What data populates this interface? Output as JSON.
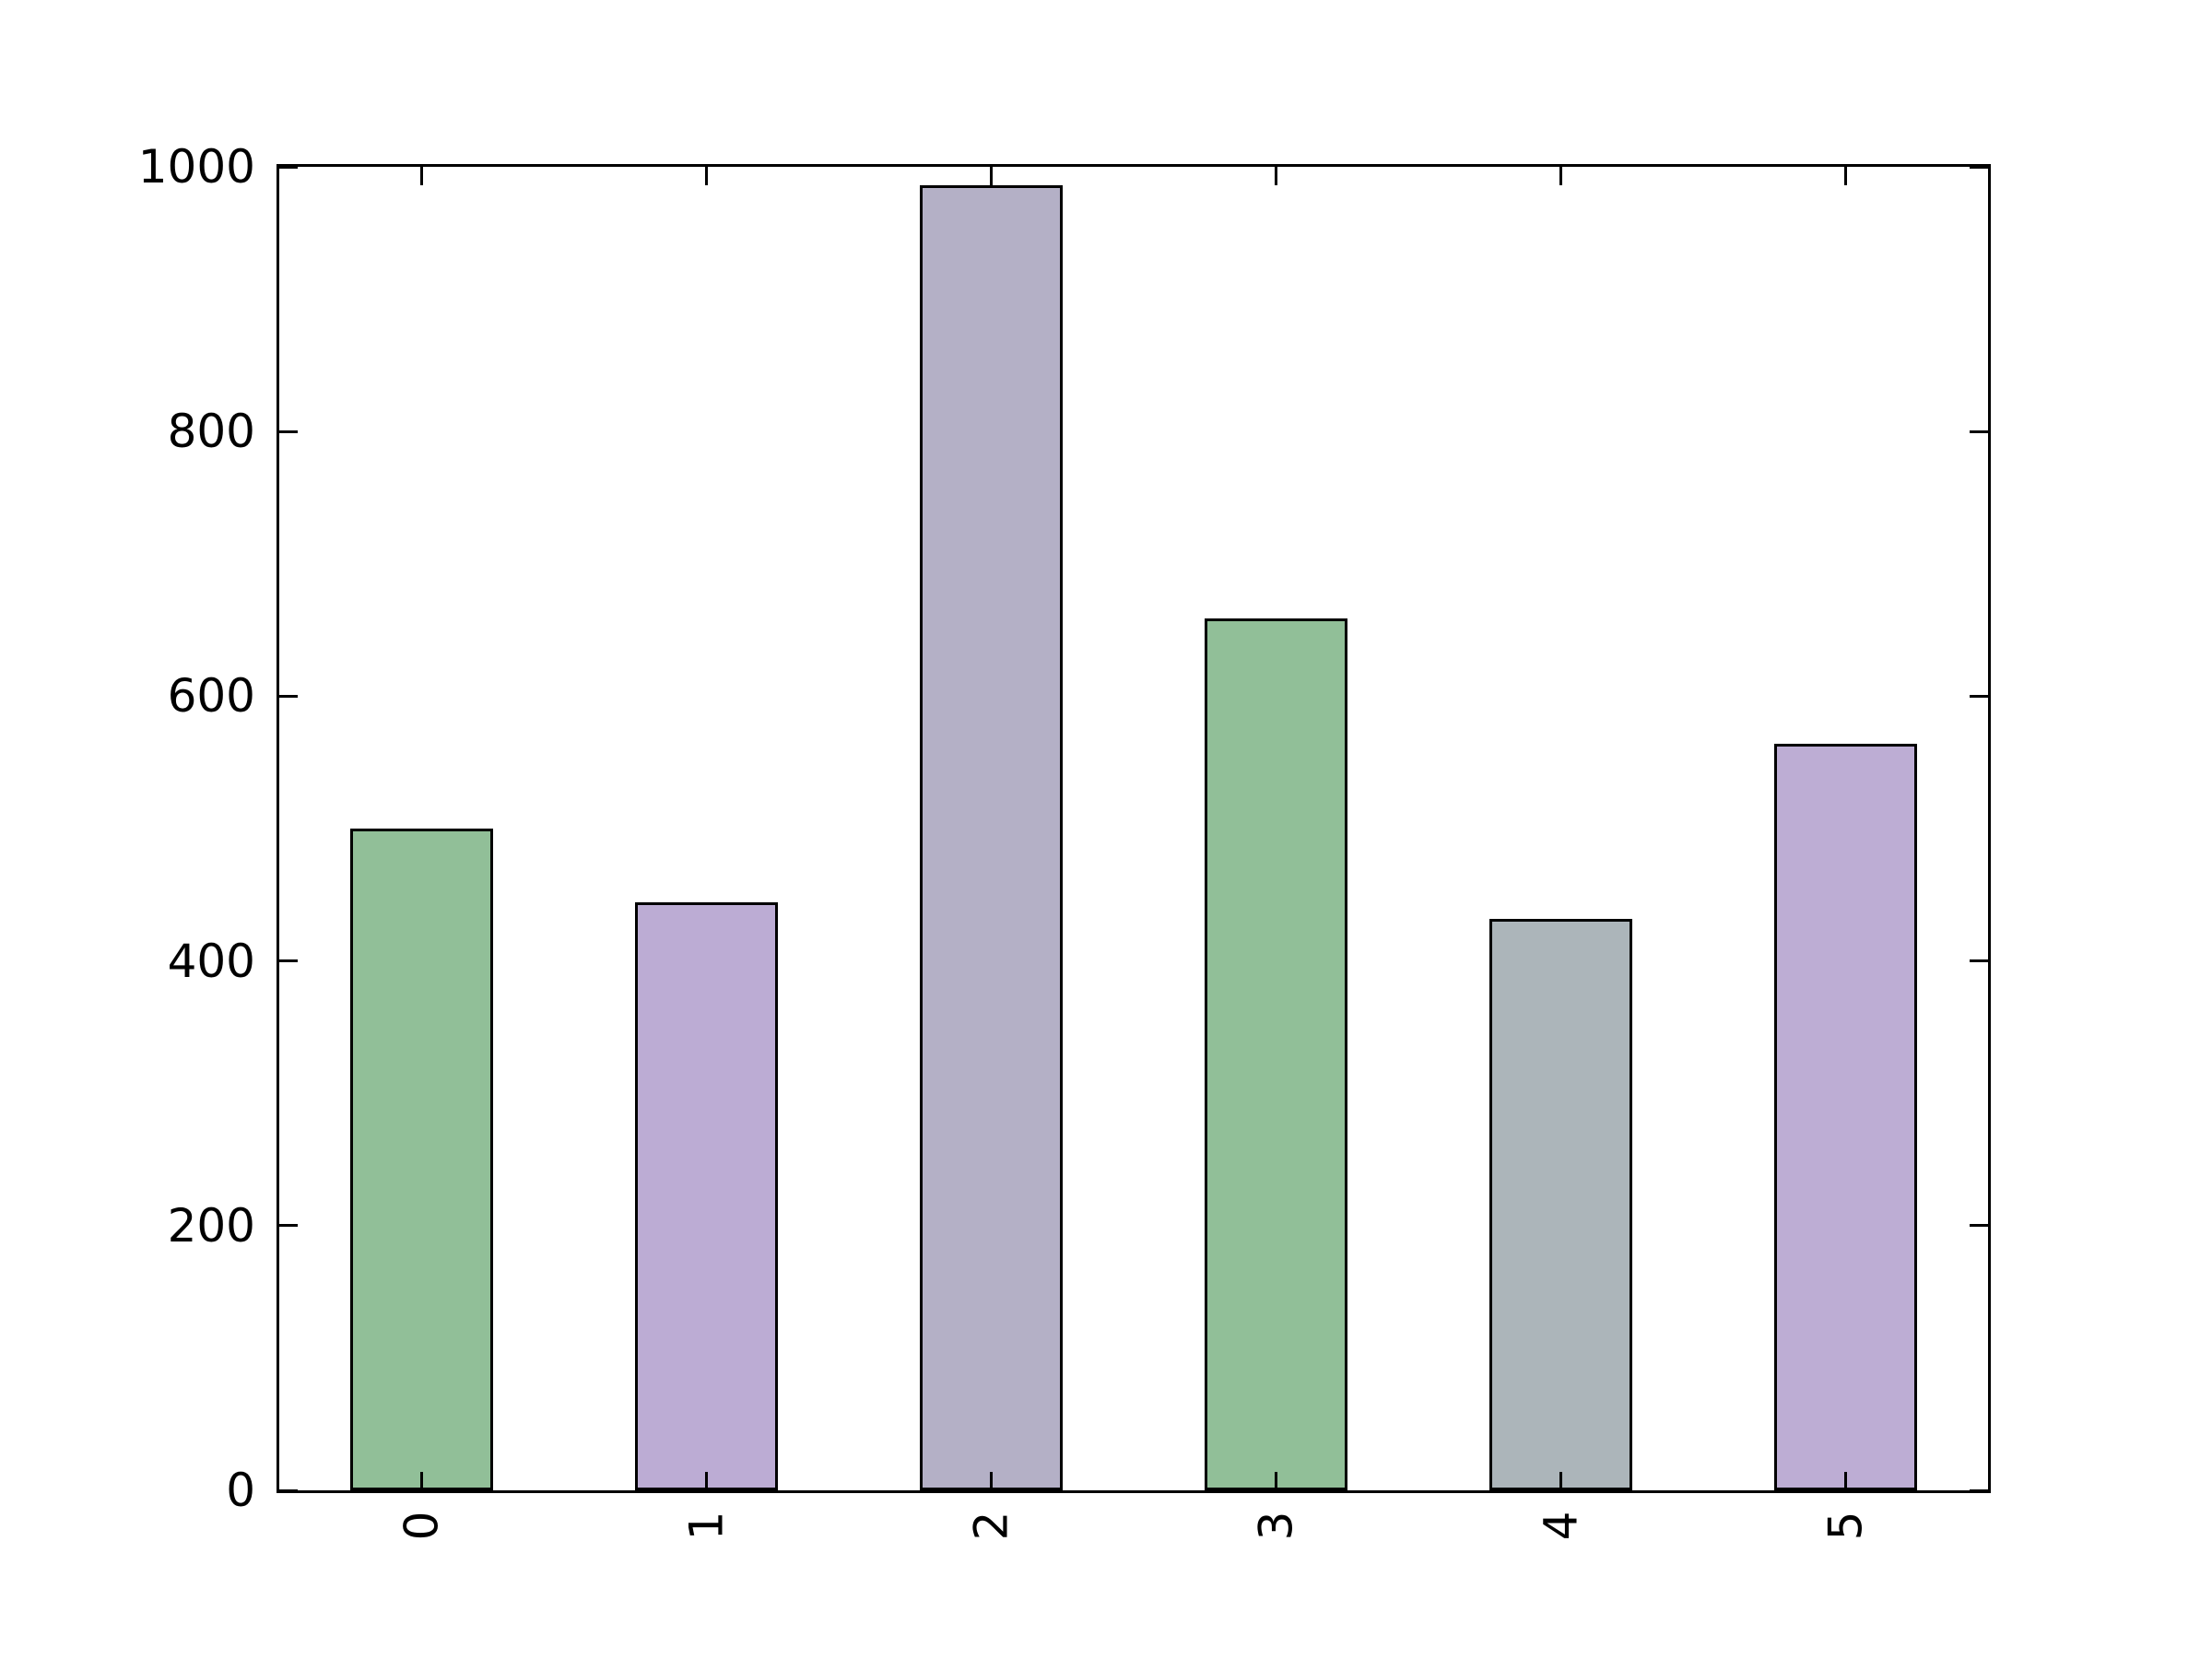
{
  "chart_data": {
    "type": "bar",
    "title": "",
    "xlabel": "",
    "ylabel": "",
    "categories": [
      "0",
      "1",
      "2",
      "3",
      "4",
      "5"
    ],
    "values": [
      500,
      444,
      986,
      659,
      432,
      564
    ],
    "bar_colors": [
      "#91BF98",
      "#BCACD4",
      "#B4B0C6",
      "#91BF98",
      "#ACB5BA",
      "#BDADD4"
    ],
    "bar_edge_color": "#000000",
    "ylim": [
      0,
      1000
    ],
    "yticks": [
      0,
      200,
      400,
      600,
      800,
      1000
    ],
    "ytick_labels": [
      "0",
      "200",
      "400",
      "600",
      "800",
      "1000"
    ],
    "xtick_rotation_degrees": 90,
    "bar_width_fraction": 0.5,
    "grid": "off",
    "legend": "none",
    "axes_color": "#000000",
    "background_color": "#ffffff",
    "tick_direction": "in",
    "ticks_on_all_sides": true
  }
}
